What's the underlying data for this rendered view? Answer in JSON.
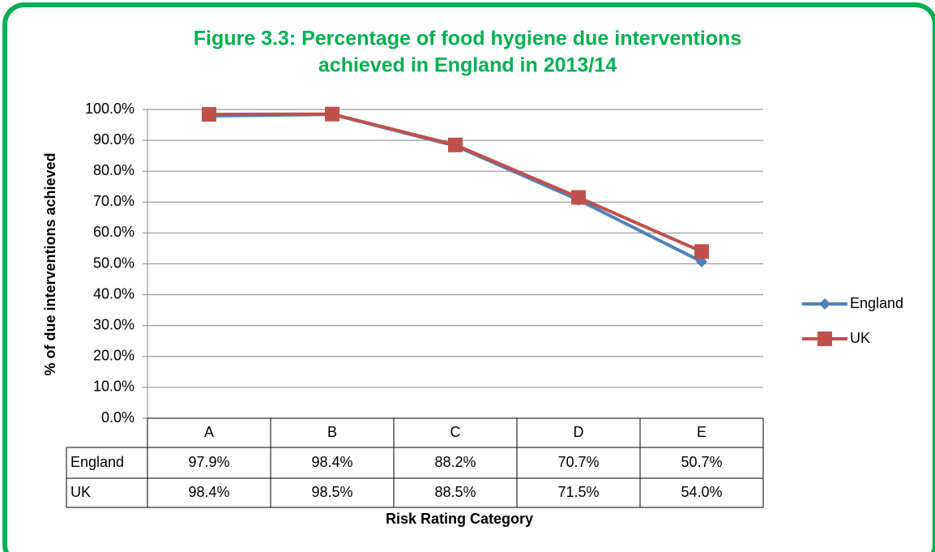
{
  "chart_data": {
    "type": "line",
    "title": [
      "Figure 3.3: Percentage of food hygiene due interventions",
      "achieved in England in 2013/14"
    ],
    "y_label": "% of due interventions achieved",
    "x_label": "Risk Rating Category",
    "categories": [
      "A",
      "B",
      "C",
      "D",
      "E"
    ],
    "series": [
      {
        "name": "England",
        "color": "#4f81bd",
        "marker": "diamond",
        "values": [
          97.9,
          98.4,
          88.2,
          70.7,
          50.7
        ],
        "value_labels": [
          "97.9%",
          "98.4%",
          "88.2%",
          "70.7%",
          "50.7%"
        ]
      },
      {
        "name": "UK",
        "color": "#c0504d",
        "marker": "square",
        "values": [
          98.4,
          98.5,
          88.5,
          71.5,
          54.0
        ],
        "value_labels": [
          "98.4%",
          "98.5%",
          "88.5%",
          "71.5%",
          "54.0%"
        ]
      }
    ],
    "ylim": [
      0,
      100
    ],
    "yticks": [
      {
        "value": 0,
        "label": "0.0%"
      },
      {
        "value": 10,
        "label": "10.0%"
      },
      {
        "value": 20,
        "label": "20.0%"
      },
      {
        "value": 30,
        "label": "30.0%"
      },
      {
        "value": 40,
        "label": "40.0%"
      },
      {
        "value": 50,
        "label": "50.0%"
      },
      {
        "value": 60,
        "label": "60.0%"
      },
      {
        "value": 70,
        "label": "70.0%"
      },
      {
        "value": 80,
        "label": "80.0%"
      },
      {
        "value": 90,
        "label": "90.0%"
      },
      {
        "value": 100,
        "label": "100.0%"
      }
    ],
    "grid": true,
    "legend": "right"
  }
}
